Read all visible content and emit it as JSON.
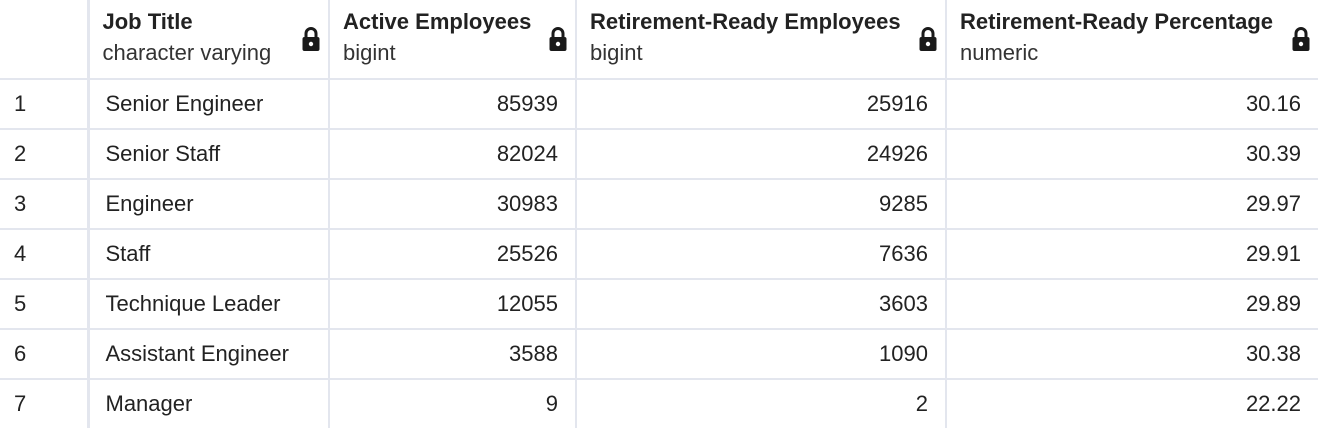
{
  "columns": [
    {
      "name": "Job Title",
      "type": "character varying"
    },
    {
      "name": "Active Employees",
      "type": "bigint"
    },
    {
      "name": "Retirement-Ready Employees",
      "type": "bigint"
    },
    {
      "name": "Retirement-Ready Percentage",
      "type": "numeric"
    }
  ],
  "rows": [
    {
      "num": "1",
      "title": "Senior Engineer",
      "active": "85939",
      "ready": "25916",
      "pct": "30.16"
    },
    {
      "num": "2",
      "title": "Senior Staff",
      "active": "82024",
      "ready": "24926",
      "pct": "30.39"
    },
    {
      "num": "3",
      "title": "Engineer",
      "active": "30983",
      "ready": "9285",
      "pct": "29.97"
    },
    {
      "num": "4",
      "title": "Staff",
      "active": "25526",
      "ready": "7636",
      "pct": "29.91"
    },
    {
      "num": "5",
      "title": "Technique Leader",
      "active": "12055",
      "ready": "3603",
      "pct": "29.89"
    },
    {
      "num": "6",
      "title": "Assistant Engineer",
      "active": "3588",
      "ready": "1090",
      "pct": "30.38"
    },
    {
      "num": "7",
      "title": "Manager",
      "active": "9",
      "ready": "2",
      "pct": "22.22"
    }
  ],
  "icons": {
    "column_lock": "lock-icon"
  },
  "colors": {
    "grid_line": "#e3e6ee",
    "text": "#222222"
  }
}
